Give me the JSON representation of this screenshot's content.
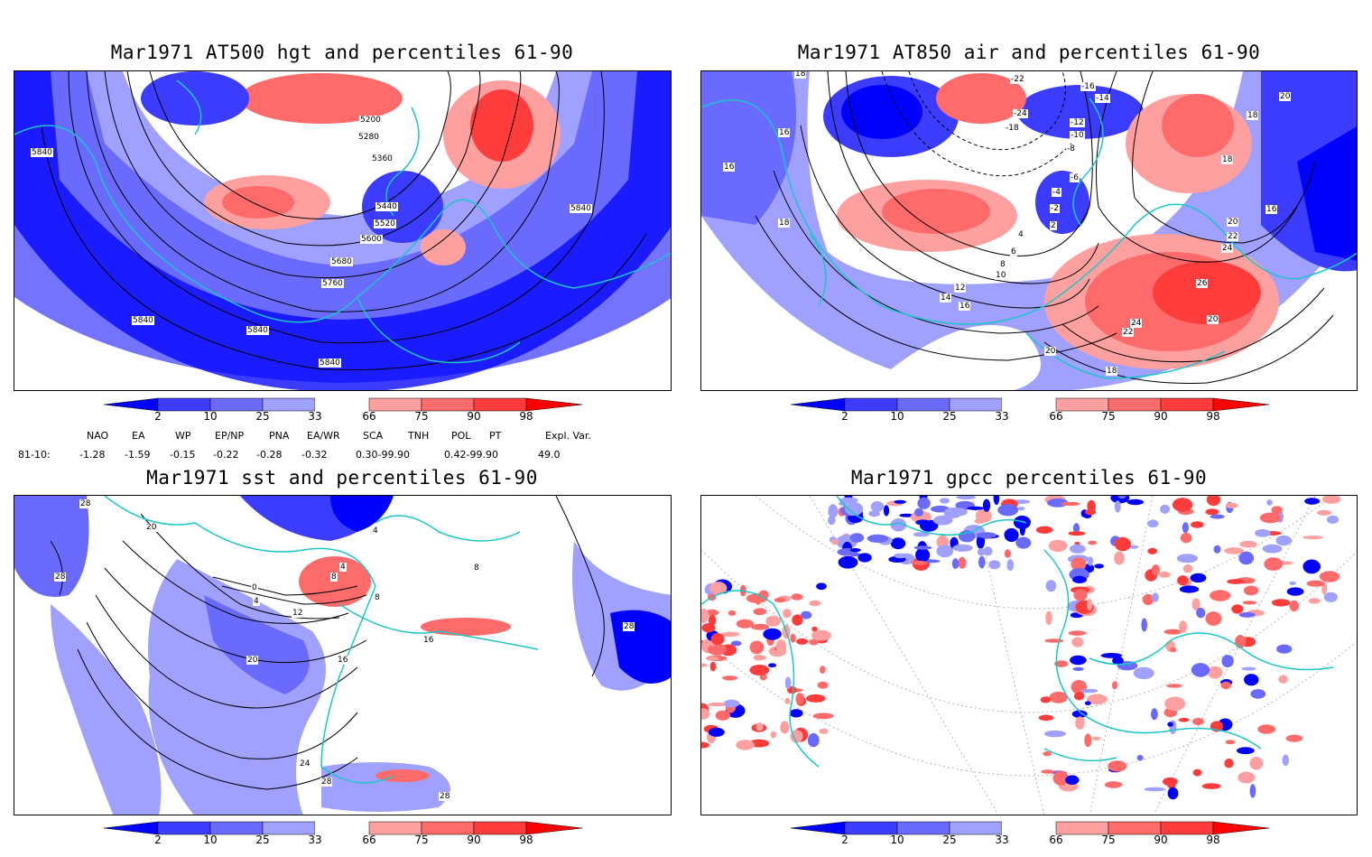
{
  "panels": {
    "p1": {
      "title": "Mar1971 AT500 hgt and percentiles 61-90",
      "contour_labels": [
        "5200",
        "5280",
        "5360",
        "5440",
        "5520",
        "5600",
        "5680",
        "5760",
        "5840",
        "5840",
        "5840",
        "5840",
        "5840"
      ]
    },
    "p2": {
      "title": "Mar1971 AT850 air and percentiles 61-90",
      "contour_labels": [
        "18",
        "16",
        "16",
        "18",
        "-22",
        "-16",
        "-14",
        "-24",
        "-18",
        "-12",
        "-10",
        "-8",
        "-6",
        "-4",
        "-2",
        "2",
        "4",
        "6",
        "8",
        "10",
        "12",
        "14",
        "16",
        "18",
        "20",
        "20",
        "22",
        "24",
        "26",
        "24",
        "22",
        "20",
        "20",
        "18",
        "18",
        "16"
      ]
    },
    "p3": {
      "title": "Mar1971 sst and percentiles 61-90",
      "contour_labels": [
        "28",
        "28",
        "20",
        "0",
        "4",
        "4",
        "8",
        "12",
        "16",
        "20",
        "24",
        "28",
        "28",
        "16",
        "8",
        "4",
        "8",
        "28"
      ]
    },
    "p4": {
      "title": "Mar1971 gpcc percentiles 61-90"
    }
  },
  "colorbar": {
    "ticks": [
      "2",
      "10",
      "25",
      "33",
      "66",
      "75",
      "90",
      "98"
    ],
    "colors": [
      "#0000ff",
      "#3c3cff",
      "#6a6aff",
      "#a0a0ff",
      "#ffffff",
      "#ffa0a0",
      "#ff6a6a",
      "#ff3c3c",
      "#ff0000"
    ]
  },
  "indices": {
    "headers": [
      "NAO",
      "EA",
      "WP",
      "EP/NP",
      "PNA",
      "EA/WR",
      "SCA",
      "TNH",
      "POL",
      "PT",
      "Expl. Var."
    ],
    "row_label": "81-10:",
    "values": [
      "-1.28",
      "-1.59",
      "-0.15",
      "-0.22",
      "-0.28",
      "-0.32",
      "0.30-99.90",
      "0.42-99.90",
      "49.0"
    ]
  },
  "colors": {
    "coast": "#1cc6c6",
    "blue_dark": "#0000ff",
    "blue_mid": "#3c3cff",
    "blue_light": "#a0a0ff",
    "red_light": "#ffa0a0",
    "red_mid": "#ff6a6a",
    "red_dark": "#ff3c3c"
  }
}
